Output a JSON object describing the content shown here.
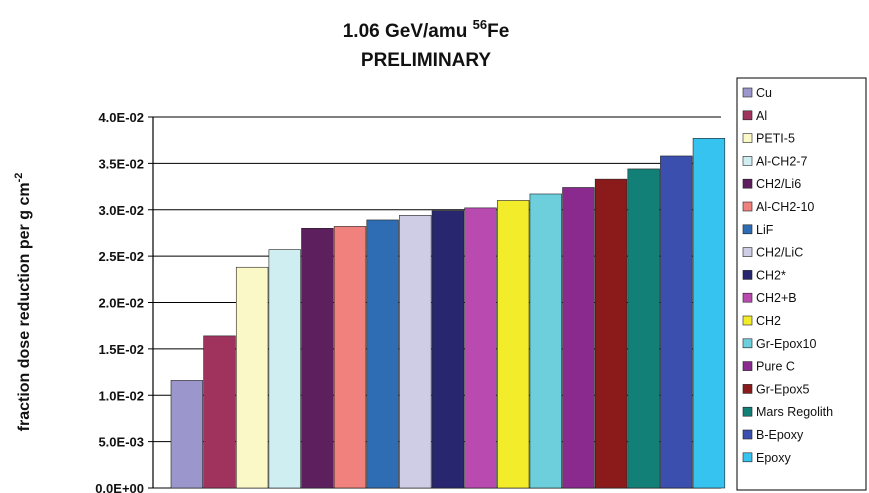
{
  "chart_data": {
    "type": "bar",
    "title_line1": "1.06 GeV/amu ",
    "title_superscript": "56",
    "title_line1_suffix": "Fe",
    "title_line2": "PRELIMINARY",
    "ylabel": "fraction dose reduction per g cm",
    "ylabel_superscript": "-2",
    "xlabel": "",
    "ylim": [
      0,
      0.04
    ],
    "yticks": [
      0,
      0.005,
      0.01,
      0.015,
      0.02,
      0.025,
      0.03,
      0.035,
      0.04
    ],
    "ytick_labels": [
      "0.0E+00",
      "5.0E-03",
      "1.0E-02",
      "1.5E-02",
      "2.0E-02",
      "2.5E-02",
      "3.0E-02",
      "3.5E-02",
      "4.0E-02"
    ],
    "grid": true,
    "legend_position": "right",
    "categories": [
      "Cu",
      "Al",
      "PETI-5",
      "Al-CH2-7",
      "CH2/Li6",
      "Al-CH2-10",
      "LiF",
      "CH2/LiC",
      "CH2*",
      "CH2+B",
      "CH2",
      "Gr-Epox10",
      "Pure C",
      "Gr-Epox5",
      "Mars Regolith",
      "B-Epoxy",
      "Epoxy"
    ],
    "values": [
      0.0116,
      0.0164,
      0.0238,
      0.0257,
      0.028,
      0.0282,
      0.0289,
      0.0294,
      0.0299,
      0.0302,
      0.031,
      0.0317,
      0.0324,
      0.0333,
      0.0344,
      0.0358,
      0.0377
    ],
    "colors": [
      "#9b96cb",
      "#a0325e",
      "#fbf8c8",
      "#cfeef2",
      "#5e1f5f",
      "#f0817c",
      "#2e6cb3",
      "#cfcde6",
      "#27266f",
      "#b94ab0",
      "#f2ec2a",
      "#6ecfdc",
      "#8a2a8e",
      "#8b1a1a",
      "#138078",
      "#3a4fae",
      "#36c3ef"
    ]
  }
}
